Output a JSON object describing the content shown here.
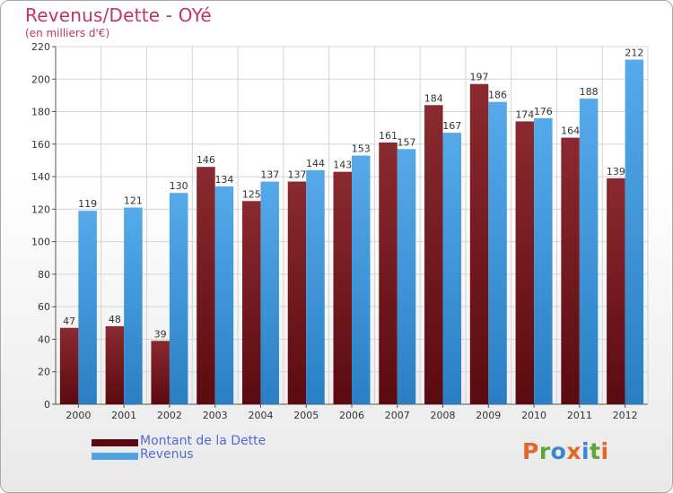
{
  "title": "Revenus/Dette - OYé",
  "subtitle": "(en milliers d'€)",
  "logo": {
    "letters": [
      "P",
      "r",
      "o",
      "x",
      "i",
      "t",
      "i"
    ],
    "colors": [
      "#e8642a",
      "#5aa83c",
      "#3a86d0",
      "#e8642a",
      "#3a86d0",
      "#5aa83c",
      "#e8642a"
    ]
  },
  "colors": {
    "dette": "#7a1c22",
    "revenus": "#4fa3e3",
    "title": "#c0336a"
  },
  "chart_data": {
    "type": "bar",
    "categories": [
      "2000",
      "2001",
      "2002",
      "2003",
      "2004",
      "2005",
      "2006",
      "2007",
      "2008",
      "2009",
      "2010",
      "2011",
      "2012"
    ],
    "series": [
      {
        "name": "Montant de la Dette",
        "values": [
          47,
          48,
          39,
          146,
          125,
          137,
          143,
          161,
          184,
          197,
          174,
          164,
          139
        ]
      },
      {
        "name": "Revenus",
        "values": [
          119,
          121,
          130,
          134,
          137,
          144,
          153,
          157,
          167,
          186,
          176,
          188,
          212
        ]
      }
    ],
    "yticks": [
      0,
      20,
      40,
      60,
      80,
      100,
      120,
      140,
      160,
      180,
      200,
      220
    ],
    "ylim": [
      0,
      220
    ],
    "grid": true,
    "legend": "bottom-left"
  }
}
